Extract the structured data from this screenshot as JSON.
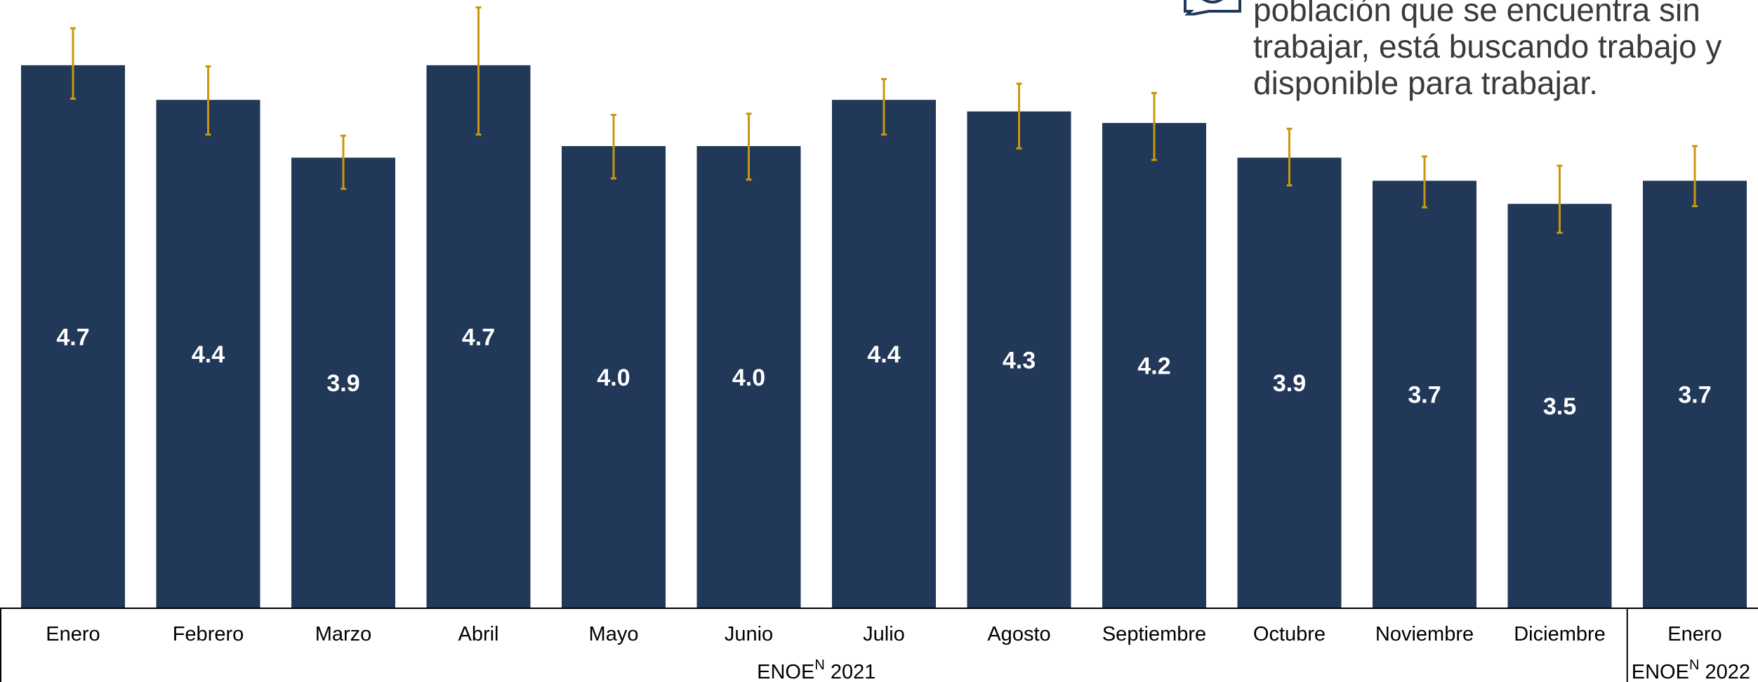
{
  "note": {
    "lines": [
      "población que se encuentra sin",
      "trabajar, está buscando trabajo y",
      "disponible para trabajar."
    ],
    "icon": "speech-bubble-icon"
  },
  "colors": {
    "bar": "#213858",
    "error_bar": "#C9970F",
    "value_label": "#FFFFFF",
    "axis": "#000000",
    "note_text": "#3A3A3A"
  },
  "chart_data": {
    "type": "bar",
    "categories": [
      "Enero",
      "Febrero",
      "Marzo",
      "Abril",
      "Mayo",
      "Junio",
      "Julio",
      "Agosto",
      "Septiembre",
      "Octubre",
      "Noviembre",
      "Diciembre",
      "Enero"
    ],
    "values": [
      4.7,
      4.4,
      3.9,
      4.7,
      4.0,
      4.0,
      4.4,
      4.3,
      4.2,
      3.9,
      3.7,
      3.5,
      3.7
    ],
    "value_labels": [
      "4.7",
      "4.4",
      "3.9",
      "4.7",
      "4.0",
      "4.0",
      "4.4",
      "4.3",
      "4.2",
      "3.9",
      "3.7",
      "3.5",
      "3.7"
    ],
    "error_low": [
      4.41,
      4.1,
      3.63,
      4.1,
      3.72,
      3.71,
      4.1,
      3.98,
      3.88,
      3.66,
      3.47,
      3.25,
      3.48
    ],
    "error_high": [
      5.02,
      4.69,
      4.09,
      5.2,
      4.27,
      4.28,
      4.58,
      4.54,
      4.46,
      4.15,
      3.91,
      3.83,
      4.0
    ],
    "groups": [
      {
        "label_main": "ENOE",
        "label_sup": "N",
        "label_year": " 2021",
        "count": 12
      },
      {
        "label_main": "ENOE",
        "label_sup": "N",
        "label_year": " 2022",
        "count": 1
      }
    ],
    "xlabel": "",
    "ylabel": "",
    "grid": false,
    "legend": "none"
  }
}
